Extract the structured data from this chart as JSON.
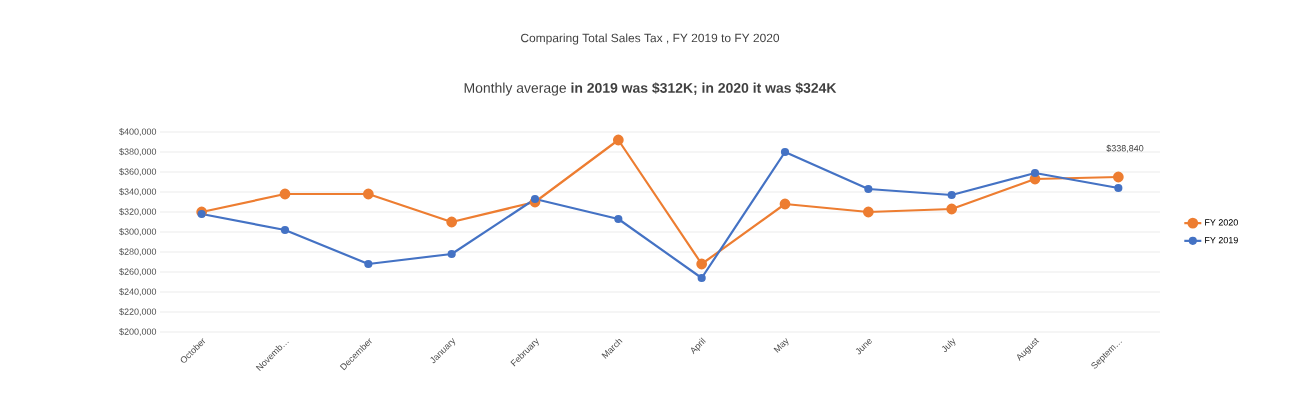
{
  "chart_data": {
    "type": "line",
    "title": "Comparing Total Sales Tax , FY 2019 to FY 2020",
    "subtitle": "Monthly average **in 2019 was $312K; in 2020 it was $324K**",
    "categories": [
      "October",
      "Novemb…",
      "December",
      "January",
      "February",
      "March",
      "April",
      "May",
      "June",
      "July",
      "August",
      "Septem…"
    ],
    "series": [
      {
        "name": "FY 2020",
        "color": "#ed7d31",
        "values": [
          320000,
          338000,
          338000,
          310000,
          330000,
          392000,
          268000,
          328000,
          320000,
          323000,
          353000,
          355000
        ]
      },
      {
        "name": "FY 2019",
        "color": "#4472c4",
        "values": [
          318000,
          302000,
          268000,
          278000,
          333000,
          313000,
          254000,
          380000,
          343000,
          337000,
          359000,
          344000
        ]
      }
    ],
    "ylim": [
      200000,
      400000
    ],
    "yticks": [
      {
        "value": 200000,
        "label": "$200,000"
      },
      {
        "value": 220000,
        "label": "$220,000"
      },
      {
        "value": 240000,
        "label": "$240,000"
      },
      {
        "value": 260000,
        "label": "$260,000"
      },
      {
        "value": 280000,
        "label": "$280,000"
      },
      {
        "value": 300000,
        "label": "$300,000"
      },
      {
        "value": 320000,
        "label": "$320,000"
      },
      {
        "value": 340000,
        "label": "$340,000"
      },
      {
        "value": 360000,
        "label": "$360,000"
      },
      {
        "value": 380000,
        "label": "$380,000"
      },
      {
        "value": 400000,
        "label": "$400,000"
      }
    ],
    "annotations": [
      "$338,840"
    ],
    "grid": "y",
    "legend": "right",
    "marker": "circle",
    "line_style": "solid"
  }
}
